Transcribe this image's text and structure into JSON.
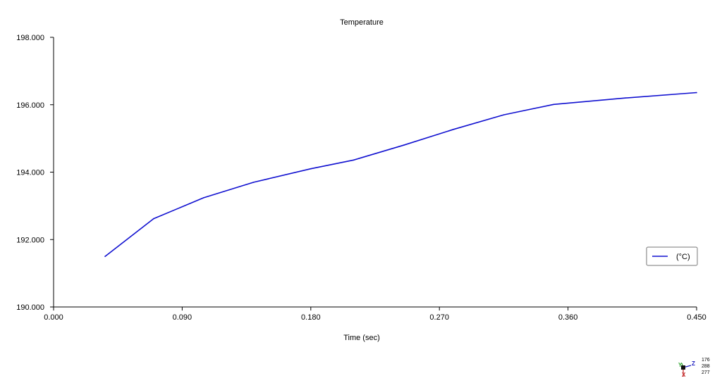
{
  "chart_data": {
    "type": "line",
    "title": "Temperature",
    "xlabel": "Time (sec)",
    "ylabel": "",
    "xlim": [
      0.0,
      0.45
    ],
    "ylim": [
      190.0,
      198.0
    ],
    "x_ticks": [
      "0.000",
      "0.090",
      "0.180",
      "0.270",
      "0.360",
      "0.450"
    ],
    "y_ticks": [
      "190.000",
      "192.000",
      "194.000",
      "196.000",
      "198.000"
    ],
    "grid": false,
    "legend_position": "right",
    "series": [
      {
        "name": "(°C)",
        "color": "#1010d0",
        "x": [
          0.036,
          0.07,
          0.105,
          0.14,
          0.18,
          0.21,
          0.245,
          0.28,
          0.315,
          0.35,
          0.4,
          0.45
        ],
        "y": [
          191.5,
          192.62,
          193.24,
          193.7,
          194.1,
          194.36,
          194.8,
          195.27,
          195.7,
          196.01,
          196.2,
          196.36
        ]
      }
    ]
  },
  "triad": {
    "axes": {
      "y": "Y",
      "z": "Z",
      "x": "X"
    },
    "colors": {
      "y": "#2aa02a",
      "z": "#2020c0",
      "x": "#c02020"
    },
    "values": [
      "176",
      "288",
      "277"
    ]
  }
}
